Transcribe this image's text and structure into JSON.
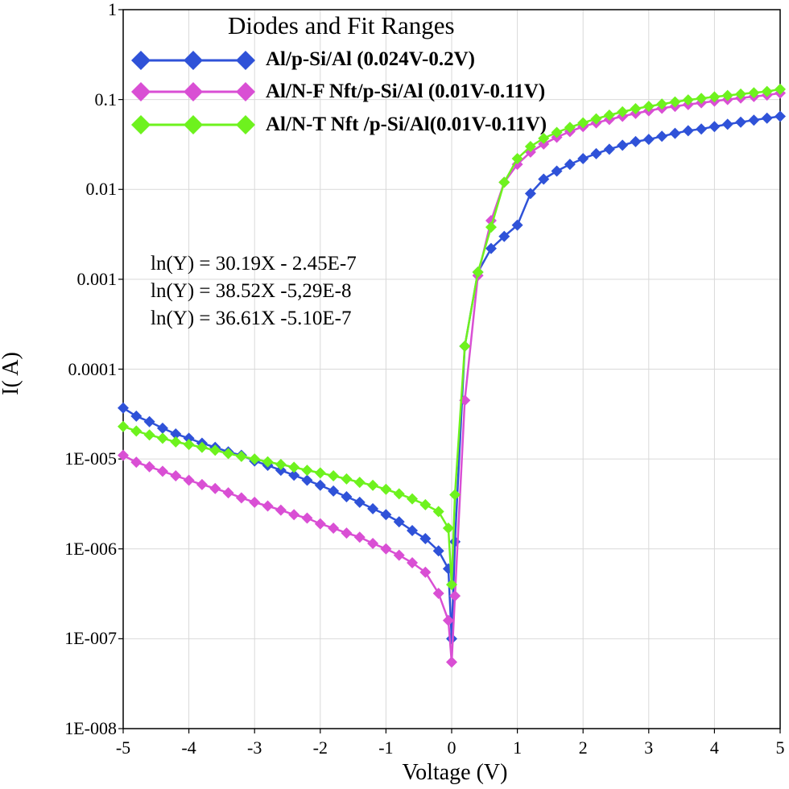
{
  "chart_data": {
    "type": "line",
    "y_scale": "log",
    "xlabel": "Voltage (V)",
    "ylabel": "I( A)",
    "xlim": [
      -5,
      5
    ],
    "ylim": [
      1e-08,
      1
    ],
    "x_ticks": [
      "-5",
      "-4",
      "-3",
      "-2",
      "-1",
      "0",
      "1",
      "2",
      "3",
      "4",
      "5"
    ],
    "y_ticks": [
      "1",
      "0.1",
      "0.01",
      "0.001",
      "0.0001",
      "1E-005",
      "1E-006",
      "1E-007",
      "1E-008"
    ],
    "legend": {
      "title": "Diodes and Fit Ranges",
      "entries": [
        "Al/p-Si/Al (0.024V-0.2V)",
        "Al/N-F Nft/p-Si/Al (0.01V-0.11V)",
        "Al/N-T Nft /p-Si/Al(0.01V-0.11V)"
      ]
    },
    "annotations": [
      "ln(Y) = 30.19X - 2.45E-7",
      "ln(Y) = 38.52X -5,29E-8",
      "ln(Y) = 36.61X -5.10E-7"
    ],
    "series": [
      {
        "name": "Al/p-Si/Al (0.024V-0.2V)",
        "color": "#2f52d8",
        "marker": "diamond",
        "x": [
          -5,
          -4.8,
          -4.6,
          -4.4,
          -4.2,
          -4,
          -3.8,
          -3.6,
          -3.4,
          -3.2,
          -3,
          -2.8,
          -2.6,
          -2.4,
          -2.2,
          -2,
          -1.8,
          -1.6,
          -1.4,
          -1.2,
          -1,
          -0.8,
          -0.6,
          -0.4,
          -0.2,
          -0.05,
          0,
          0.05,
          0.2,
          0.4,
          0.6,
          0.8,
          1,
          1.2,
          1.4,
          1.6,
          1.8,
          2,
          2.2,
          2.4,
          2.6,
          2.8,
          3,
          3.2,
          3.4,
          3.6,
          3.8,
          4,
          4.2,
          4.4,
          4.6,
          4.8,
          5
        ],
        "y": [
          3.7e-05,
          3e-05,
          2.6e-05,
          2.2e-05,
          1.9e-05,
          1.7e-05,
          1.5e-05,
          1.35e-05,
          1.2e-05,
          1.1e-05,
          9.5e-06,
          8.5e-06,
          7.5e-06,
          6.6e-06,
          5.8e-06,
          5.1e-06,
          4.4e-06,
          3.8e-06,
          3.3e-06,
          2.8e-06,
          2.4e-06,
          2e-06,
          1.6e-06,
          1.3e-06,
          9.5e-07,
          6e-07,
          1e-07,
          1.2e-06,
          0.00018,
          0.0012,
          0.0022,
          0.003,
          0.004,
          0.009,
          0.013,
          0.016,
          0.019,
          0.022,
          0.025,
          0.028,
          0.031,
          0.034,
          0.036,
          0.039,
          0.042,
          0.045,
          0.047,
          0.05,
          0.053,
          0.056,
          0.059,
          0.062,
          0.065
        ]
      },
      {
        "name": "Al/N-F Nft/p-Si/Al (0.01V-0.11V)",
        "color": "#d94fd4",
        "marker": "diamond",
        "x": [
          -5,
          -4.8,
          -4.6,
          -4.4,
          -4.2,
          -4,
          -3.8,
          -3.6,
          -3.4,
          -3.2,
          -3,
          -2.8,
          -2.6,
          -2.4,
          -2.2,
          -2,
          -1.8,
          -1.6,
          -1.4,
          -1.2,
          -1,
          -0.8,
          -0.6,
          -0.4,
          -0.2,
          -0.05,
          0,
          0.05,
          0.2,
          0.4,
          0.6,
          0.8,
          1,
          1.2,
          1.4,
          1.6,
          1.8,
          2,
          2.2,
          2.4,
          2.6,
          2.8,
          3,
          3.2,
          3.4,
          3.6,
          3.8,
          4,
          4.2,
          4.4,
          4.6,
          4.8,
          5
        ],
        "y": [
          1.1e-05,
          9.2e-06,
          8.2e-06,
          7.3e-06,
          6.5e-06,
          5.8e-06,
          5.2e-06,
          4.7e-06,
          4.2e-06,
          3.7e-06,
          3.3e-06,
          3e-06,
          2.7e-06,
          2.4e-06,
          2.2e-06,
          1.9e-06,
          1.7e-06,
          1.5e-06,
          1.35e-06,
          1.15e-06,
          1e-06,
          8.5e-07,
          7e-07,
          5.5e-07,
          3.2e-07,
          1.6e-07,
          5.5e-08,
          3e-07,
          4.5e-05,
          0.0011,
          0.0045,
          0.012,
          0.019,
          0.026,
          0.032,
          0.038,
          0.044,
          0.05,
          0.055,
          0.06,
          0.065,
          0.07,
          0.075,
          0.08,
          0.084,
          0.088,
          0.092,
          0.096,
          0.1,
          0.104,
          0.108,
          0.112,
          0.118
        ]
      },
      {
        "name": "Al/N-T Nft /p-Si/Al(0.01V-0.11V)",
        "color": "#6ef21e",
        "marker": "diamond",
        "x": [
          -5,
          -4.8,
          -4.6,
          -4.4,
          -4.2,
          -4,
          -3.8,
          -3.6,
          -3.4,
          -3.2,
          -3,
          -2.8,
          -2.6,
          -2.4,
          -2.2,
          -2,
          -1.8,
          -1.6,
          -1.4,
          -1.2,
          -1,
          -0.8,
          -0.6,
          -0.4,
          -0.2,
          -0.05,
          0,
          0.05,
          0.2,
          0.4,
          0.6,
          0.8,
          1,
          1.2,
          1.4,
          1.6,
          1.8,
          2,
          2.2,
          2.4,
          2.6,
          2.8,
          3,
          3.2,
          3.4,
          3.6,
          3.8,
          4,
          4.2,
          4.4,
          4.6,
          4.8,
          5
        ],
        "y": [
          2.3e-05,
          2.05e-05,
          1.85e-05,
          1.7e-05,
          1.55e-05,
          1.45e-05,
          1.35e-05,
          1.25e-05,
          1.15e-05,
          1.07e-05,
          1e-05,
          9.3e-06,
          8.7e-06,
          8.1e-06,
          7.5e-06,
          7e-06,
          6.5e-06,
          6e-06,
          5.5e-06,
          5.1e-06,
          4.6e-06,
          4.1e-06,
          3.6e-06,
          3.1e-06,
          2.6e-06,
          1.7e-06,
          4e-07,
          4e-06,
          0.00018,
          0.0012,
          0.0038,
          0.012,
          0.022,
          0.03,
          0.037,
          0.043,
          0.049,
          0.055,
          0.061,
          0.067,
          0.073,
          0.079,
          0.084,
          0.089,
          0.094,
          0.099,
          0.103,
          0.107,
          0.111,
          0.115,
          0.119,
          0.123,
          0.13
        ]
      }
    ]
  }
}
